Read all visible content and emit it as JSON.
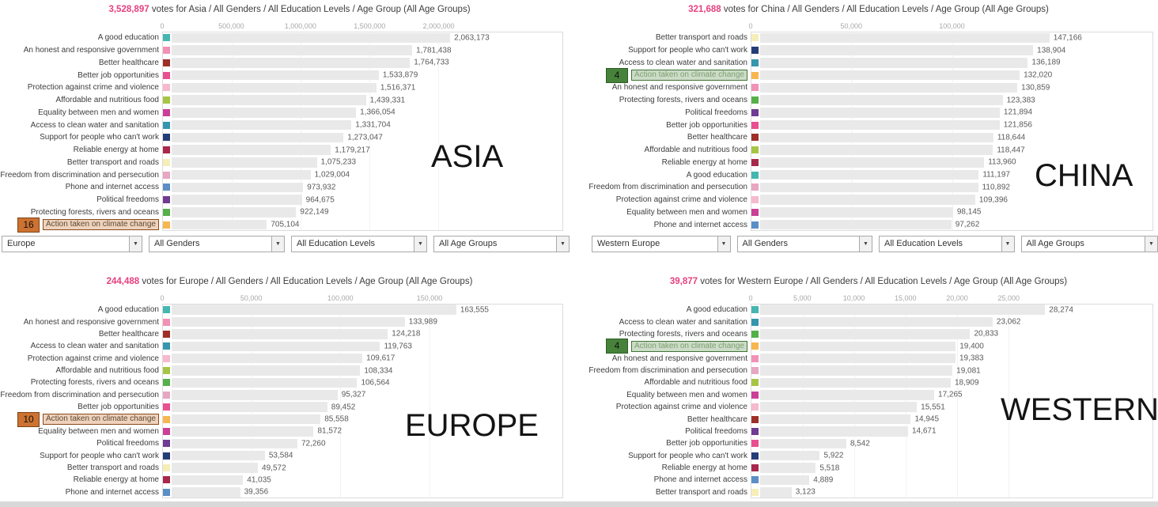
{
  "colors": {
    "accent_votes": "#e5407e",
    "bar_fill": "#e9e9e9",
    "category_colors": {
      "A good education": "#45b7b0",
      "An honest and responsive government": "#f291b6",
      "Better healthcare": "#9e2f28",
      "Better job opportunities": "#e8508f",
      "Protection against crime and violence": "#f6b9ce",
      "Affordable and nutritious food": "#a6c545",
      "Equality between men and women": "#cb3f97",
      "Access to clean water and sanitation": "#3596ad",
      "Support for people who can't work": "#253d77",
      "Reliable energy at home": "#a8274a",
      "Better transport and roads": "#f5eeb8",
      "Freedom from discrimination and persecution": "#e7a6c1",
      "Phone and internet access": "#5c8ec6",
      "Political freedoms": "#6f3b93",
      "Protecting forests, rivers and oceans": "#56b04a",
      "Action taken on climate change": "#f7b64f"
    }
  },
  "filters": {
    "left": [
      "Europe",
      "All Genders",
      "All Education Levels",
      "All Age Groups"
    ],
    "right": [
      "Western Europe",
      "All Genders",
      "All Education Levels",
      "All Age Groups"
    ]
  },
  "chart_data": [
    {
      "type": "bar",
      "region": "Asia",
      "big_label": "ASIA",
      "votes": "3,528,897",
      "title_rest": " votes for Asia / All Genders / All Education Levels / Age Group (All Age Groups)",
      "axis_max": 2900000,
      "axis_ticks": [
        {
          "label": "0",
          "value": 0
        },
        {
          "label": "500,000",
          "value": 500000
        },
        {
          "label": "1,000,000",
          "value": 1000000
        },
        {
          "label": "1,500,000",
          "value": 1500000
        },
        {
          "label": "2,000,000",
          "value": 2000000
        }
      ],
      "highlight": {
        "category": "Action taken on climate change",
        "rank": "16",
        "badge_bg": "#cd7231",
        "badge_border": "#7d4416",
        "hl_bg": "rgba(205,114,49,0.32)",
        "hl_border": "#8a4a1a",
        "hl_text": "#5b4a33"
      },
      "rows": [
        {
          "label": "A good education",
          "value": 2063173,
          "value_label": "2,063,173"
        },
        {
          "label": "An honest and responsive government",
          "value": 1781438,
          "value_label": "1,781,438"
        },
        {
          "label": "Better healthcare",
          "value": 1764733,
          "value_label": "1,764,733"
        },
        {
          "label": "Better job opportunities",
          "value": 1533879,
          "value_label": "1,533,879"
        },
        {
          "label": "Protection against crime and violence",
          "value": 1516371,
          "value_label": "1,516,371"
        },
        {
          "label": "Affordable and nutritious food",
          "value": 1439331,
          "value_label": "1,439,331"
        },
        {
          "label": "Equality between men and women",
          "value": 1366054,
          "value_label": "1,366,054"
        },
        {
          "label": "Access to clean water and sanitation",
          "value": 1331704,
          "value_label": "1,331,704"
        },
        {
          "label": "Support for people who can't work",
          "value": 1273047,
          "value_label": "1,273,047"
        },
        {
          "label": "Reliable energy at home",
          "value": 1179217,
          "value_label": "1,179,217"
        },
        {
          "label": "Better transport and roads",
          "value": 1075233,
          "value_label": "1,075,233"
        },
        {
          "label": "Freedom from discrimination and persecution",
          "value": 1029004,
          "value_label": "1,029,004"
        },
        {
          "label": "Phone and internet access",
          "value": 973932,
          "value_label": "973,932"
        },
        {
          "label": "Political freedoms",
          "value": 964675,
          "value_label": "964,675"
        },
        {
          "label": "Protecting forests, rivers and oceans",
          "value": 922149,
          "value_label": "922,149"
        },
        {
          "label": "Action taken on climate change",
          "value": 705104,
          "value_label": "705,104",
          "highlight": true
        }
      ]
    },
    {
      "type": "bar",
      "region": "China",
      "big_label": "CHINA",
      "votes": "321,688",
      "title_rest": " votes for China / All Genders / All Education Levels / Age Group (All Age Groups)",
      "axis_max": 200000,
      "axis_ticks": [
        {
          "label": "0",
          "value": 0
        },
        {
          "label": "50,000",
          "value": 50000
        },
        {
          "label": "100,000",
          "value": 100000
        }
      ],
      "highlight": {
        "category": "Action taken on climate change",
        "rank": "4",
        "badge_bg": "#47823b",
        "badge_border": "#2f5c26",
        "hl_bg": "rgba(71,130,59,0.28)",
        "hl_border": "#3f7435",
        "hl_text": "#7fa070"
      },
      "rows": [
        {
          "label": "Better transport and roads",
          "value": 147166,
          "value_label": "147,166"
        },
        {
          "label": "Support for people who can't work",
          "value": 138904,
          "value_label": "138,904"
        },
        {
          "label": "Access to clean water and sanitation",
          "value": 136189,
          "value_label": "136,189"
        },
        {
          "label": "Action taken on climate change",
          "value": 132020,
          "value_label": "132,020",
          "highlight": true
        },
        {
          "label": "An honest and responsive government",
          "value": 130859,
          "value_label": "130,859"
        },
        {
          "label": "Protecting forests, rivers and oceans",
          "value": 123383,
          "value_label": "123,383"
        },
        {
          "label": "Political freedoms",
          "value": 121894,
          "value_label": "121,894"
        },
        {
          "label": "Better job opportunities",
          "value": 121856,
          "value_label": "121,856"
        },
        {
          "label": "Better healthcare",
          "value": 118644,
          "value_label": "118,644"
        },
        {
          "label": "Affordable and nutritious food",
          "value": 118447,
          "value_label": "118,447"
        },
        {
          "label": "Reliable energy at home",
          "value": 113960,
          "value_label": "113,960"
        },
        {
          "label": "A good education",
          "value": 111197,
          "value_label": "111,197"
        },
        {
          "label": "Freedom from discrimination and persecution",
          "value": 110892,
          "value_label": "110,892"
        },
        {
          "label": "Protection against crime and violence",
          "value": 109396,
          "value_label": "109,396"
        },
        {
          "label": "Equality between men and women",
          "value": 98145,
          "value_label": "98,145"
        },
        {
          "label": "Phone and internet access",
          "value": 97262,
          "value_label": "97,262"
        }
      ]
    },
    {
      "type": "bar",
      "region": "Europe",
      "big_label": "EUROPE",
      "votes": "244,488",
      "title_rest": " votes for Europe / All Genders / All Education Levels / Age Group (All Age Groups)",
      "axis_max": 225000,
      "axis_ticks": [
        {
          "label": "0",
          "value": 0
        },
        {
          "label": "50,000",
          "value": 50000
        },
        {
          "label": "100,000",
          "value": 100000
        },
        {
          "label": "150,000",
          "value": 150000
        }
      ],
      "highlight": {
        "category": "Action taken on climate change",
        "rank": "10",
        "badge_bg": "#cd7231",
        "badge_border": "#7d4416",
        "hl_bg": "rgba(205,114,49,0.32)",
        "hl_border": "#8a4a1a",
        "hl_text": "#5b4a33"
      },
      "rows": [
        {
          "label": "A good education",
          "value": 163555,
          "value_label": "163,555"
        },
        {
          "label": "An honest and responsive government",
          "value": 133989,
          "value_label": "133,989"
        },
        {
          "label": "Better healthcare",
          "value": 124218,
          "value_label": "124,218"
        },
        {
          "label": "Access to clean water and sanitation",
          "value": 119763,
          "value_label": "119,763"
        },
        {
          "label": "Protection against crime and violence",
          "value": 109617,
          "value_label": "109,617"
        },
        {
          "label": "Affordable and nutritious food",
          "value": 108334,
          "value_label": "108,334"
        },
        {
          "label": "Protecting forests, rivers and oceans",
          "value": 106564,
          "value_label": "106,564"
        },
        {
          "label": "Freedom from discrimination and persecution",
          "value": 95327,
          "value_label": "95,327"
        },
        {
          "label": "Better job opportunities",
          "value": 89452,
          "value_label": "89,452"
        },
        {
          "label": "Action taken on climate change",
          "value": 85558,
          "value_label": "85,558",
          "highlight": true
        },
        {
          "label": "Equality between men and women",
          "value": 81572,
          "value_label": "81,572"
        },
        {
          "label": "Political freedoms",
          "value": 72260,
          "value_label": "72,260"
        },
        {
          "label": "Support for people who can't work",
          "value": 53584,
          "value_label": "53,584"
        },
        {
          "label": "Better transport and roads",
          "value": 49572,
          "value_label": "49,572"
        },
        {
          "label": "Reliable energy at home",
          "value": 41035,
          "value_label": "41,035"
        },
        {
          "label": "Phone and internet access",
          "value": 39356,
          "value_label": "39,356"
        }
      ]
    },
    {
      "type": "bar",
      "region": "Western Europe",
      "big_label": "WESTERN",
      "votes": "39,877",
      "title_rest": " votes for Western Europe / All Genders / All Education Levels / Age Group (All Age Groups)",
      "axis_max": 39000,
      "axis_ticks": [
        {
          "label": "0",
          "value": 0
        },
        {
          "label": "5,000",
          "value": 5000
        },
        {
          "label": "10,000",
          "value": 10000
        },
        {
          "label": "15,000",
          "value": 15000
        },
        {
          "label": "20,000",
          "value": 20000
        },
        {
          "label": "25,000",
          "value": 25000
        }
      ],
      "highlight": {
        "category": "Action taken on climate change",
        "rank": "4",
        "badge_bg": "#47823b",
        "badge_border": "#2f5c26",
        "hl_bg": "rgba(71,130,59,0.28)",
        "hl_border": "#3f7435",
        "hl_text": "#7fa070"
      },
      "rows": [
        {
          "label": "A good education",
          "value": 28274,
          "value_label": "28,274"
        },
        {
          "label": "Access to clean water and sanitation",
          "value": 23062,
          "value_label": "23,062"
        },
        {
          "label": "Protecting forests, rivers and oceans",
          "value": 20833,
          "value_label": "20,833"
        },
        {
          "label": "Action taken on climate change",
          "value": 19400,
          "value_label": "19,400",
          "highlight": true
        },
        {
          "label": "An honest and responsive government",
          "value": 19383,
          "value_label": "19,383"
        },
        {
          "label": "Freedom from discrimination and persecution",
          "value": 19081,
          "value_label": "19,081"
        },
        {
          "label": "Affordable and nutritious food",
          "value": 18909,
          "value_label": "18,909"
        },
        {
          "label": "Equality between men and women",
          "value": 17265,
          "value_label": "17,265"
        },
        {
          "label": "Protection against crime and violence",
          "value": 15551,
          "value_label": "15,551"
        },
        {
          "label": "Better healthcare",
          "value": 14945,
          "value_label": "14,945"
        },
        {
          "label": "Political freedoms",
          "value": 14671,
          "value_label": "14,671"
        },
        {
          "label": "Better job opportunities",
          "value": 8542,
          "value_label": "8,542"
        },
        {
          "label": "Support for people who can't work",
          "value": 5922,
          "value_label": "5,922"
        },
        {
          "label": "Reliable energy at home",
          "value": 5518,
          "value_label": "5,518"
        },
        {
          "label": "Phone and internet access",
          "value": 4889,
          "value_label": "4,889"
        },
        {
          "label": "Better transport and roads",
          "value": 3123,
          "value_label": "3,123"
        }
      ]
    }
  ]
}
